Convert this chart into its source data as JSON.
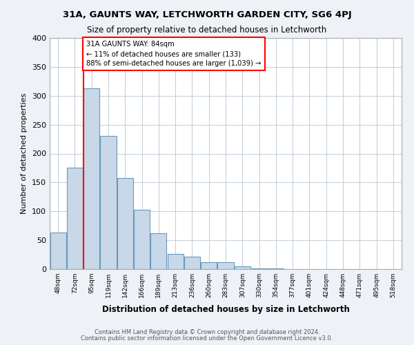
{
  "title1": "31A, GAUNTS WAY, LETCHWORTH GARDEN CITY, SG6 4PJ",
  "title2": "Size of property relative to detached houses in Letchworth",
  "xlabel": "Distribution of detached houses by size in Letchworth",
  "ylabel": "Number of detached properties",
  "bar_values": [
    63,
    175,
    313,
    230,
    158,
    103,
    62,
    26,
    22,
    12,
    12,
    5,
    1,
    1,
    0,
    0,
    0,
    0,
    0,
    0,
    0
  ],
  "bar_labels": [
    "48sqm",
    "72sqm",
    "95sqm",
    "119sqm",
    "142sqm",
    "166sqm",
    "189sqm",
    "213sqm",
    "236sqm",
    "260sqm",
    "283sqm",
    "307sqm",
    "330sqm",
    "354sqm",
    "377sqm",
    "401sqm",
    "424sqm",
    "448sqm",
    "471sqm",
    "495sqm",
    "518sqm"
  ],
  "bar_color": "#c8d8e8",
  "bar_edge_color": "#6699bb",
  "property_line_color": "red",
  "annotation_text": "31A GAUNTS WAY: 84sqm\n← 11% of detached houses are smaller (133)\n88% of semi-detached houses are larger (1,039) →",
  "annotation_box_color": "white",
  "annotation_box_edge": "red",
  "ylim": [
    0,
    400
  ],
  "yticks": [
    0,
    50,
    100,
    150,
    200,
    250,
    300,
    350,
    400
  ],
  "footer1": "Contains HM Land Registry data © Crown copyright and database right 2024.",
  "footer2": "Contains public sector information licensed under the Open Government Licence v3.0.",
  "bg_color": "#eef2f6",
  "plot_bg_color": "#ffffff",
  "grid_color": "#c0ccd8"
}
